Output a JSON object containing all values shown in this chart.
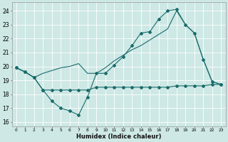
{
  "background_color": "#cde8e5",
  "grid_color": "#ffffff",
  "line_color": "#1a6b6b",
  "xlabel": "Humidex (Indice chaleur)",
  "xlim": [
    -0.5,
    23.5
  ],
  "ylim": [
    15.7,
    24.6
  ],
  "yticks": [
    16,
    17,
    18,
    19,
    20,
    21,
    22,
    23,
    24
  ],
  "xticks": [
    0,
    1,
    2,
    3,
    4,
    5,
    6,
    7,
    8,
    9,
    10,
    11,
    12,
    13,
    14,
    15,
    16,
    17,
    18,
    19,
    20,
    21,
    22,
    23
  ],
  "series1_x": [
    0,
    1,
    2,
    3,
    4,
    5,
    6,
    7,
    8,
    9,
    10,
    11,
    12,
    13,
    14,
    15,
    16,
    17,
    18,
    19,
    20,
    21,
    22,
    23
  ],
  "series1_y": [
    19.9,
    19.6,
    19.2,
    18.3,
    17.5,
    17.0,
    16.8,
    16.5,
    17.8,
    19.5,
    19.5,
    20.1,
    20.7,
    21.5,
    22.4,
    22.5,
    23.4,
    24.0,
    24.1,
    23.0,
    22.4,
    20.5,
    18.9,
    18.7
  ],
  "series2_x": [
    0,
    1,
    2,
    3,
    4,
    5,
    6,
    7,
    8,
    9,
    10,
    11,
    12,
    13,
    14,
    15,
    16,
    17,
    18,
    19,
    20,
    21,
    22,
    23
  ],
  "series2_y": [
    19.9,
    19.6,
    19.2,
    18.3,
    18.3,
    18.3,
    18.3,
    18.3,
    18.3,
    18.5,
    18.5,
    18.5,
    18.5,
    18.5,
    18.5,
    18.5,
    18.5,
    18.5,
    18.6,
    18.6,
    18.6,
    18.6,
    18.7,
    18.7
  ],
  "series3_x": [
    0,
    1,
    2,
    3,
    4,
    5,
    6,
    7,
    8,
    9,
    10,
    11,
    12,
    13,
    14,
    15,
    16,
    17,
    18,
    19,
    20,
    21,
    22,
    23
  ],
  "series3_y": [
    19.9,
    19.6,
    19.2,
    19.5,
    19.7,
    19.9,
    20.0,
    20.2,
    19.5,
    19.5,
    19.9,
    20.4,
    20.8,
    21.2,
    21.5,
    21.9,
    22.3,
    22.7,
    24.0,
    23.0,
    22.4,
    20.5,
    18.9,
    18.7
  ]
}
